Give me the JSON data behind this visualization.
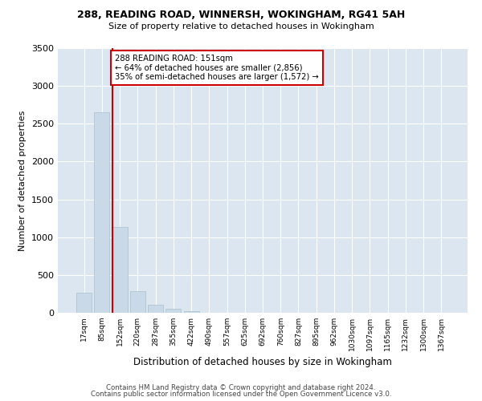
{
  "title1": "288, READING ROAD, WINNERSH, WOKINGHAM, RG41 5AH",
  "title2": "Size of property relative to detached houses in Wokingham",
  "xlabel": "Distribution of detached houses by size in Wokingham",
  "ylabel": "Number of detached properties",
  "bar_labels": [
    "17sqm",
    "85sqm",
    "152sqm",
    "220sqm",
    "287sqm",
    "355sqm",
    "422sqm",
    "490sqm",
    "557sqm",
    "625sqm",
    "692sqm",
    "760sqm",
    "827sqm",
    "895sqm",
    "962sqm",
    "1030sqm",
    "1097sqm",
    "1165sqm",
    "1232sqm",
    "1300sqm",
    "1367sqm"
  ],
  "bar_values": [
    265,
    2650,
    1130,
    285,
    105,
    52,
    20,
    0,
    0,
    0,
    0,
    0,
    0,
    0,
    0,
    0,
    0,
    0,
    0,
    0,
    0
  ],
  "bar_color": "#c9d9e8",
  "bar_edge_color": "#a8bece",
  "vline_bar_index": 2,
  "vline_color": "#cc0000",
  "annotation_text": "288 READING ROAD: 151sqm\n← 64% of detached houses are smaller (2,856)\n35% of semi-detached houses are larger (1,572) →",
  "annotation_box_color": "#ffffff",
  "annotation_box_edge": "#cc0000",
  "ylim": [
    0,
    3500
  ],
  "yticks": [
    0,
    500,
    1000,
    1500,
    2000,
    2500,
    3000,
    3500
  ],
  "background_color": "#dce6f0",
  "footer1": "Contains HM Land Registry data © Crown copyright and database right 2024.",
  "footer2": "Contains public sector information licensed under the Open Government Licence v3.0."
}
